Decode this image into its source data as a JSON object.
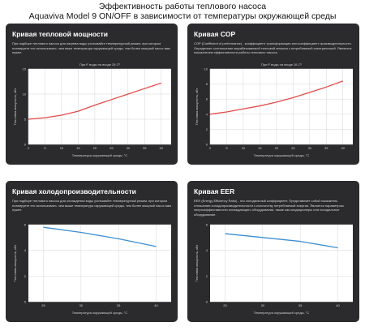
{
  "header": {
    "line1": "Эффективность работы теплового насоса",
    "line2": "Aquaviva Model 9 ON/OFF в зависимости от температуры окружающей среды"
  },
  "colors": {
    "card_bg": "#2b2b2e",
    "plot_bg": "#ffffff",
    "red_line": "#e34b4b",
    "blue_line": "#3d8fd1"
  },
  "cards": [
    {
      "title": "Кривая тепловой мощности",
      "description": "При подборе теплового насоса для нагрева воды учитывайте температурный режим, при котором планируете его использовать: чем ниже температура окружающей среды, тем более мощный насос вам нужен."
    },
    {
      "title": "Кривая COP",
      "description": "COP (Coefficient of performance) - коэффициент трансформации или коэффициент производительности. Определяет соотношение вырабатываемой тепловой энергии к потребляемой электрической. Является показателем эффективности работы теплового насоса."
    },
    {
      "title": "Кривая холодопроизводительности",
      "description": "При подборе теплового насоса для охлаждения воды учитывайте температурный режим, при котором планируете его использовать: чем выше температура окружающей среды, тем более мощный насос вам нужен."
    },
    {
      "title": "Кривая EER",
      "description": "EER (Energy Efficiency Ratio) - это холодильный коэффициент. Представляет собой показатель отношения холодопроизводительности к количеству потребляемой энергии. Является параметром энергоэффективности охлаждающего оборудования, также как кондиционеры или холодильное оборудование."
    }
  ],
  "chart_data": [
    {
      "type": "line",
      "plot_title": "При tº воды на входе 26 Сº",
      "xlabel": "Температура окружающей среды, °С",
      "ylabel": "Тепловая мощность, кВт",
      "xlim": [
        0,
        43
      ],
      "ylim": [
        0,
        15
      ],
      "xticks": [
        0,
        5,
        10,
        15,
        20,
        25,
        30,
        35,
        40
      ],
      "yticks": [
        0,
        5,
        10,
        15
      ],
      "grid": true,
      "series": [
        {
          "x": [
            0,
            5,
            10,
            15,
            20,
            25,
            30,
            35,
            40
          ],
          "y": [
            5.0,
            5.3,
            5.8,
            6.6,
            7.8,
            8.9,
            10.0,
            11.1,
            12.2
          ]
        }
      ]
    },
    {
      "type": "line",
      "plot_title": "При tº воды на входе 26 Сº",
      "xlabel": "Температура окружающей среды, °С",
      "ylabel": "Тепловая мощность, кВт",
      "xlim": [
        0,
        43
      ],
      "ylim": [
        0,
        10
      ],
      "xticks": [
        0,
        5,
        10,
        15,
        20,
        25,
        30,
        35,
        40
      ],
      "yticks": [
        0,
        2,
        4,
        6,
        8,
        10
      ],
      "grid": true,
      "series": [
        {
          "x": [
            0,
            5,
            10,
            15,
            20,
            25,
            30,
            35,
            40
          ],
          "y": [
            4.0,
            4.3,
            4.7,
            5.1,
            5.6,
            6.2,
            6.9,
            7.6,
            8.4
          ]
        }
      ]
    },
    {
      "type": "line",
      "plot_title": "",
      "xlabel": "Температура окружающей среды, °С",
      "ylabel": "Тепловая мощность, кВт",
      "xlim": [
        23,
        42
      ],
      "ylim": [
        0,
        6
      ],
      "xticks": [
        25,
        30,
        35,
        40
      ],
      "yticks": [
        0,
        2,
        4,
        6
      ],
      "grid": true,
      "series": [
        {
          "x": [
            25,
            30,
            35,
            40
          ],
          "y": [
            5.8,
            5.4,
            4.9,
            4.3
          ]
        }
      ]
    },
    {
      "type": "line",
      "plot_title": "",
      "xlabel": "Температура окружающей среды, °С",
      "ylabel": "Тепловая мощность, кВт",
      "xlim": [
        23,
        42
      ],
      "ylim": [
        0,
        6
      ],
      "xticks": [
        25,
        30,
        35,
        40
      ],
      "yticks": [
        0,
        2,
        4,
        6
      ],
      "grid": true,
      "series": [
        {
          "x": [
            25,
            30,
            35,
            40
          ],
          "y": [
            5.3,
            5.0,
            4.7,
            4.2
          ]
        }
      ]
    }
  ]
}
